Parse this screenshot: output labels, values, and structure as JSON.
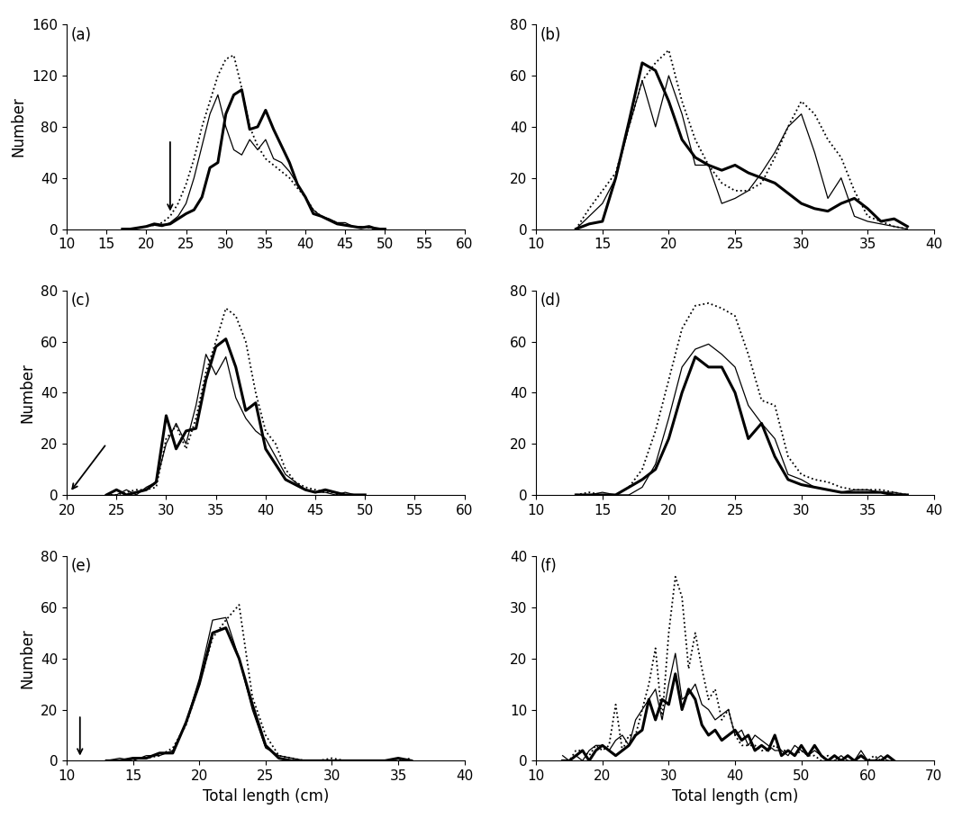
{
  "chart_data": [
    {
      "type": "line",
      "title": "(a)",
      "ylabel": "Number",
      "x": [
        17,
        18,
        19,
        20,
        21,
        22,
        23,
        24,
        25,
        26,
        27,
        28,
        29,
        30,
        31,
        32,
        33,
        34,
        35,
        36,
        37,
        38,
        39,
        40,
        41,
        42,
        43,
        44,
        45,
        46,
        47,
        48,
        49,
        50
      ],
      "series": [
        {
          "color": "#000000",
          "line_style": "dotted",
          "values": [
            0,
            0,
            1,
            2,
            3,
            5,
            10,
            20,
            35,
            55,
            80,
            100,
            120,
            133,
            136,
            110,
            80,
            65,
            55,
            50,
            45,
            40,
            32,
            25,
            15,
            10,
            7,
            5,
            3,
            2,
            1,
            1,
            0,
            0
          ]
        },
        {
          "color": "#000000",
          "line_style": "solid",
          "values": [
            0,
            0,
            1,
            2,
            3,
            2,
            5,
            10,
            20,
            40,
            65,
            90,
            105,
            80,
            62,
            58,
            70,
            62,
            70,
            55,
            52,
            45,
            35,
            25,
            15,
            10,
            8,
            5,
            5,
            2,
            2,
            1,
            1,
            0
          ]
        },
        {
          "color": "#000000",
          "line_style": "bold",
          "values": [
            0,
            0,
            1,
            2,
            4,
            3,
            4,
            8,
            12,
            15,
            25,
            48,
            52,
            90,
            105,
            109,
            78,
            80,
            93,
            78,
            65,
            52,
            35,
            25,
            12,
            10,
            7,
            4,
            3,
            2,
            1,
            2,
            0,
            0
          ]
        }
      ],
      "arrow": {
        "x": [
          23,
          23
        ],
        "y": [
          70,
          12
        ]
      },
      "xlim": [
        10,
        60
      ],
      "xticks": [
        10,
        15,
        20,
        25,
        30,
        35,
        40,
        45,
        50,
        55,
        60
      ],
      "ylim": [
        0,
        160
      ],
      "yticks": [
        0,
        40,
        80,
        120,
        160
      ]
    },
    {
      "type": "line",
      "title": "(b)",
      "x": [
        13,
        14,
        15,
        16,
        17,
        18,
        19,
        20,
        21,
        22,
        23,
        24,
        25,
        26,
        27,
        28,
        29,
        30,
        31,
        32,
        33,
        34,
        35,
        36,
        37,
        38
      ],
      "series": [
        {
          "color": "#000000",
          "line_style": "dotted",
          "values": [
            0,
            8,
            15,
            22,
            40,
            58,
            65,
            70,
            50,
            35,
            25,
            18,
            15,
            15,
            18,
            28,
            40,
            50,
            45,
            35,
            28,
            15,
            5,
            3,
            1,
            0
          ]
        },
        {
          "color": "#000000",
          "line_style": "solid",
          "values": [
            0,
            5,
            10,
            20,
            40,
            58,
            40,
            60,
            45,
            25,
            25,
            10,
            12,
            15,
            22,
            30,
            40,
            45,
            30,
            12,
            20,
            5,
            3,
            2,
            1,
            0
          ]
        },
        {
          "color": "#000000",
          "line_style": "bold",
          "values": [
            0,
            2,
            3,
            20,
            42,
            65,
            62,
            50,
            35,
            28,
            25,
            23,
            25,
            22,
            20,
            18,
            14,
            10,
            8,
            7,
            10,
            12,
            8,
            3,
            4,
            1
          ]
        }
      ],
      "xlim": [
        10,
        40
      ],
      "xticks": [
        10,
        15,
        20,
        25,
        30,
        35,
        40
      ],
      "ylim": [
        0,
        80
      ],
      "yticks": [
        0,
        20,
        40,
        60,
        80
      ]
    },
    {
      "type": "line",
      "title": "(c)",
      "ylabel": "Number",
      "x": [
        24,
        25,
        26,
        27,
        28,
        29,
        30,
        31,
        32,
        33,
        34,
        35,
        36,
        37,
        38,
        39,
        40,
        41,
        42,
        43,
        44,
        45,
        46,
        47,
        48,
        49,
        50
      ],
      "series": [
        {
          "color": "#000000",
          "line_style": "dotted",
          "values": [
            0,
            0,
            1,
            2,
            2,
            3,
            22,
            27,
            18,
            30,
            48,
            60,
            73,
            70,
            60,
            40,
            25,
            20,
            10,
            5,
            3,
            2,
            1,
            1,
            0,
            0,
            0
          ]
        },
        {
          "color": "#000000",
          "line_style": "solid",
          "values": [
            0,
            0,
            2,
            0,
            3,
            5,
            20,
            28,
            20,
            35,
            55,
            47,
            54,
            38,
            30,
            25,
            22,
            15,
            8,
            5,
            2,
            1,
            1,
            0,
            1,
            0,
            0
          ]
        },
        {
          "color": "#000000",
          "line_style": "bold",
          "values": [
            0,
            2,
            0,
            1,
            2,
            5,
            31,
            18,
            25,
            26,
            45,
            58,
            61,
            50,
            33,
            36,
            18,
            12,
            6,
            4,
            2,
            1,
            2,
            1,
            0,
            0,
            0
          ]
        }
      ],
      "arrow": {
        "x": [
          24,
          20.3
        ],
        "y": [
          20,
          1
        ]
      },
      "xlim": [
        20,
        60
      ],
      "xticks": [
        20,
        25,
        30,
        35,
        40,
        45,
        50,
        55,
        60
      ],
      "ylim": [
        0,
        80
      ],
      "yticks": [
        0,
        20,
        40,
        60,
        80
      ]
    },
    {
      "type": "line",
      "title": "(d)",
      "x": [
        13,
        14,
        15,
        16,
        17,
        18,
        19,
        20,
        21,
        22,
        23,
        24,
        25,
        26,
        27,
        28,
        29,
        30,
        31,
        32,
        33,
        34,
        35,
        36,
        37,
        38
      ],
      "series": [
        {
          "color": "#000000",
          "line_style": "dotted",
          "values": [
            0,
            1,
            0,
            0,
            3,
            10,
            25,
            45,
            65,
            74,
            75,
            73,
            70,
            55,
            37,
            35,
            15,
            8,
            6,
            5,
            3,
            2,
            2,
            2,
            1,
            0
          ]
        },
        {
          "color": "#000000",
          "line_style": "solid",
          "values": [
            0,
            0,
            1,
            0,
            0,
            3,
            12,
            30,
            50,
            57,
            59,
            55,
            50,
            35,
            28,
            22,
            8,
            6,
            3,
            2,
            1,
            2,
            2,
            1,
            1,
            0
          ]
        },
        {
          "color": "#000000",
          "line_style": "bold",
          "values": [
            0,
            0,
            0,
            0,
            3,
            6,
            10,
            22,
            40,
            54,
            50,
            50,
            40,
            22,
            28,
            15,
            6,
            4,
            3,
            2,
            1,
            1,
            1,
            1,
            0,
            0
          ]
        }
      ],
      "xlim": [
        10,
        40
      ],
      "xticks": [
        10,
        15,
        20,
        25,
        30,
        35,
        40
      ],
      "ylim": [
        0,
        80
      ],
      "yticks": [
        0,
        20,
        40,
        60,
        80
      ]
    },
    {
      "type": "line",
      "title": "(e)",
      "ylabel": "Number",
      "xlabel": "Total length (cm)",
      "x": [
        13,
        14,
        15,
        16,
        17,
        18,
        19,
        20,
        21,
        22,
        23,
        24,
        25,
        26,
        27,
        28,
        29,
        30,
        31,
        32,
        33,
        34,
        35,
        36
      ],
      "series": [
        {
          "color": "#000000",
          "line_style": "dotted",
          "values": [
            0,
            0,
            1,
            1,
            2,
            5,
            14,
            30,
            48,
            55,
            61,
            25,
            10,
            2,
            1,
            0,
            0,
            1,
            0,
            0,
            0,
            0,
            0,
            1
          ]
        },
        {
          "color": "#000000",
          "line_style": "solid",
          "values": [
            0,
            1,
            0,
            2,
            2,
            4,
            15,
            32,
            55,
            56,
            40,
            20,
            5,
            2,
            1,
            0,
            0,
            0,
            0,
            0,
            0,
            0,
            0,
            0
          ]
        },
        {
          "color": "#000000",
          "line_style": "bold",
          "values": [
            0,
            0,
            1,
            1,
            3,
            3,
            15,
            30,
            50,
            52,
            40,
            22,
            6,
            1,
            0,
            0,
            0,
            0,
            0,
            0,
            0,
            0,
            1,
            0
          ]
        }
      ],
      "arrow": {
        "x": [
          11,
          11
        ],
        "y": [
          18,
          1
        ]
      },
      "xlim": [
        10,
        40
      ],
      "xticks": [
        10,
        15,
        20,
        25,
        30,
        35,
        40
      ],
      "ylim": [
        0,
        80
      ],
      "yticks": [
        0,
        20,
        40,
        60,
        80
      ]
    },
    {
      "type": "line",
      "title": "(f)",
      "xlabel": "Total length (cm)",
      "x": [
        14,
        15,
        16,
        17,
        18,
        19,
        20,
        21,
        22,
        23,
        24,
        25,
        26,
        27,
        28,
        29,
        30,
        31,
        32,
        33,
        34,
        35,
        36,
        37,
        38,
        39,
        40,
        41,
        42,
        43,
        44,
        45,
        46,
        47,
        48,
        49,
        50,
        51,
        52,
        53,
        54,
        55,
        56,
        57,
        58,
        59,
        60,
        61,
        62,
        63,
        64
      ],
      "series": [
        {
          "color": "#000000",
          "line_style": "dotted",
          "values": [
            0,
            0,
            2,
            2,
            1,
            3,
            2,
            3,
            11,
            2,
            5,
            5,
            10,
            15,
            22,
            8,
            25,
            36,
            32,
            18,
            25,
            18,
            12,
            14,
            8,
            10,
            5,
            3,
            3,
            3,
            2,
            2,
            3,
            2,
            2,
            1,
            2,
            1,
            1,
            0,
            1,
            0,
            0,
            0,
            0,
            1,
            0,
            1,
            0,
            0,
            0
          ]
        },
        {
          "color": "#000000",
          "line_style": "solid",
          "values": [
            1,
            0,
            1,
            0,
            2,
            3,
            3,
            2,
            4,
            5,
            3,
            8,
            10,
            12,
            14,
            8,
            15,
            21,
            12,
            13,
            15,
            11,
            10,
            8,
            9,
            10,
            5,
            6,
            3,
            5,
            4,
            3,
            2,
            2,
            1,
            3,
            2,
            1,
            2,
            1,
            0,
            0,
            1,
            0,
            0,
            2,
            0,
            0,
            1,
            0,
            0
          ]
        },
        {
          "color": "#000000",
          "line_style": "bold",
          "values": [
            0,
            0,
            1,
            2,
            0,
            2,
            3,
            2,
            1,
            2,
            3,
            5,
            6,
            12,
            8,
            12,
            11,
            17,
            10,
            14,
            12,
            7,
            5,
            6,
            4,
            5,
            6,
            4,
            5,
            2,
            3,
            2,
            5,
            1,
            2,
            1,
            3,
            1,
            3,
            1,
            0,
            1,
            0,
            1,
            0,
            1,
            0,
            0,
            0,
            1,
            0
          ]
        }
      ],
      "xlim": [
        10,
        70
      ],
      "xticks": [
        10,
        20,
        30,
        40,
        50,
        60,
        70
      ],
      "ylim": [
        0,
        40
      ],
      "yticks": [
        0,
        10,
        20,
        30,
        40
      ]
    }
  ]
}
